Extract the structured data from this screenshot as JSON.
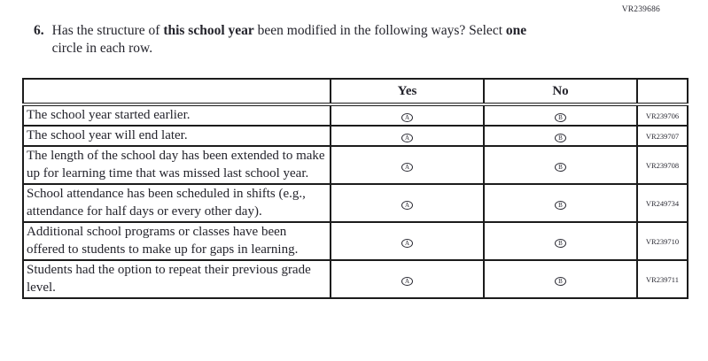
{
  "page": {
    "form_code": "VR239686"
  },
  "question": {
    "number": "6.",
    "line1_pre": "Has the structure of ",
    "line1_bold1": "this school year",
    "line1_mid": " been modified in the following ways? Select ",
    "line1_bold2": "one",
    "line2": " circle in each row."
  },
  "table": {
    "headers": {
      "statement": "",
      "yes": "Yes",
      "no": "No",
      "code": ""
    },
    "options": {
      "yes_letter": "A",
      "no_letter": "B"
    },
    "rows": [
      {
        "statement": "The school year started earlier.",
        "code": "VR239706"
      },
      {
        "statement": "The school year will end later.",
        "code": "VR239707"
      },
      {
        "statement": "The length of the school day has been extended to make up for learning time that was missed last school year.",
        "code": "VR239708"
      },
      {
        "statement": "School attendance has been scheduled in shifts (e.g., attendance for half days or every other day).",
        "code": "VR249734"
      },
      {
        "statement": "Additional school programs or classes have been offered to students to make up for gaps in learning.",
        "code": "VR239710"
      },
      {
        "statement": "Students had the option to repeat their previous grade level.",
        "code": "VR239711"
      }
    ]
  },
  "colors": {
    "text": "#24242c",
    "border": "#1c1c1c",
    "background": "#ffffff"
  }
}
